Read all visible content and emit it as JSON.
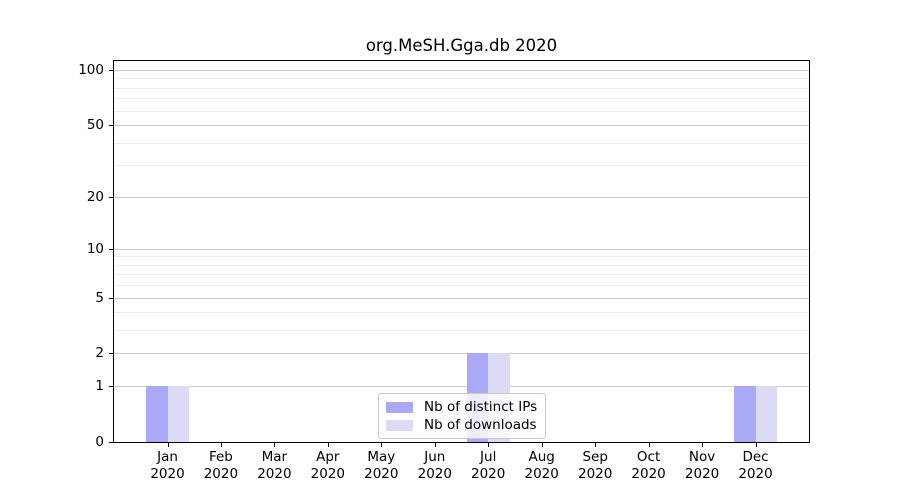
{
  "title": "org.MeSH.Gga.db 2020",
  "legend": {
    "items": [
      {
        "label": "Nb of distinct IPs",
        "color": "#a9a9f5"
      },
      {
        "label": "Nb of downloads",
        "color": "#dbdbf6"
      }
    ]
  },
  "chart_data": {
    "type": "bar",
    "title": "org.MeSH.Gga.db 2020",
    "xlabel": "",
    "ylabel": "",
    "categories": [
      "Jan 2020",
      "Feb 2020",
      "Mar 2020",
      "Apr 2020",
      "May 2020",
      "Jun 2020",
      "Jul 2020",
      "Aug 2020",
      "Sep 2020",
      "Oct 2020",
      "Nov 2020",
      "Dec 2020"
    ],
    "series": [
      {
        "name": "Nb of distinct IPs",
        "color": "#a9a9f5",
        "values": [
          1,
          0,
          0,
          0,
          0,
          0,
          2,
          0,
          0,
          0,
          0,
          1
        ]
      },
      {
        "name": "Nb of downloads",
        "color": "#dbdbf6",
        "values": [
          1,
          0,
          0,
          0,
          0,
          0,
          2,
          0,
          0,
          0,
          0,
          1
        ]
      }
    ],
    "yscale": "log1p",
    "yticks": [
      0,
      1,
      2,
      5,
      10,
      20,
      50,
      100
    ],
    "minor_yticks": [
      3,
      4,
      6,
      7,
      8,
      9,
      30,
      40,
      60,
      70,
      80,
      90
    ],
    "ylim": [
      0,
      113
    ],
    "grid": "horizontal",
    "legend_position": "lower center"
  }
}
